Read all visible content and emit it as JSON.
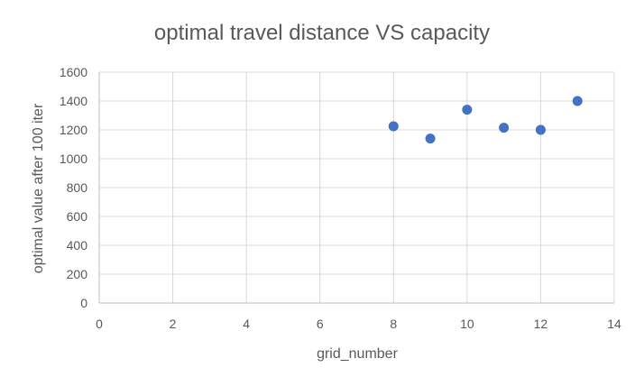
{
  "chart_data": {
    "type": "scatter",
    "title": "optimal travel distance VS capacity",
    "xlabel": "grid_number",
    "ylabel": "optimal value after 100 iter",
    "xlim": [
      0,
      14
    ],
    "ylim": [
      0,
      1600
    ],
    "xticks": [
      "0",
      "2",
      "4",
      "6",
      "8",
      "10",
      "12",
      "14"
    ],
    "yticks": [
      "0",
      "200",
      "400",
      "600",
      "800",
      "1000",
      "1200",
      "1400",
      "1600"
    ],
    "grid": true,
    "legend": "none",
    "series": [
      {
        "color": "#4472c4",
        "points": [
          {
            "x": 8,
            "y": 1225
          },
          {
            "x": 9,
            "y": 1140
          },
          {
            "x": 10,
            "y": 1340
          },
          {
            "x": 11,
            "y": 1215
          },
          {
            "x": 12,
            "y": 1200
          },
          {
            "x": 13,
            "y": 1400
          }
        ]
      }
    ]
  }
}
